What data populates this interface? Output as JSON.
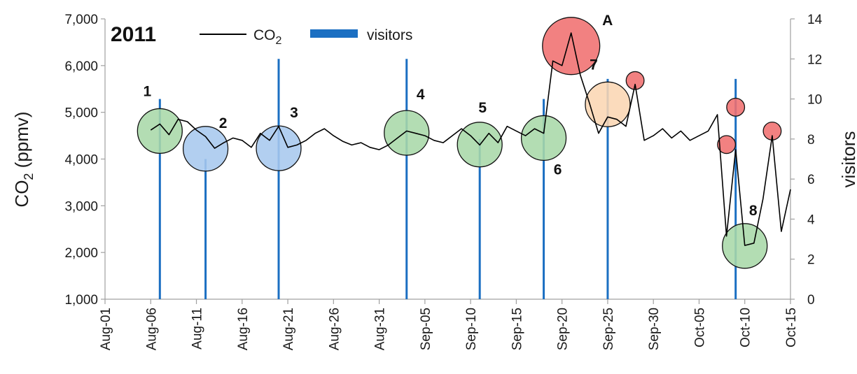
{
  "chart_data": {
    "type": "line",
    "title": "2011",
    "y_left": {
      "label_main": "CO",
      "label_sub": "2",
      "label_unit": " (ppmv)",
      "range": [
        1000,
        7000
      ],
      "ticks": [
        1000,
        2000,
        3000,
        4000,
        5000,
        6000,
        7000
      ],
      "tick_labels": [
        "1,000",
        "2,000",
        "3,000",
        "4,000",
        "5,000",
        "6,000",
        "7,000"
      ]
    },
    "y_right": {
      "label": "visitors",
      "range": [
        0,
        14
      ],
      "ticks": [
        0,
        2,
        4,
        6,
        8,
        10,
        12,
        14
      ],
      "tick_labels": [
        "0",
        "2",
        "4",
        "6",
        "8",
        "10",
        "12",
        "14"
      ]
    },
    "x_axis": {
      "start": "2011-08-01",
      "end": "2011-10-15",
      "tick_dates": [
        "2011-08-01",
        "2011-08-06",
        "2011-08-11",
        "2011-08-16",
        "2011-08-21",
        "2011-08-26",
        "2011-08-31",
        "2011-09-05",
        "2011-09-10",
        "2011-09-15",
        "2011-09-20",
        "2011-09-25",
        "2011-09-30",
        "2011-10-05",
        "2011-10-10",
        "2011-10-15"
      ],
      "tick_labels": [
        "Aug-01",
        "Aug-06",
        "Aug-11",
        "Aug-16",
        "Aug-21",
        "Aug-26",
        "Aug-31",
        "Sep-05",
        "Sep-10",
        "Sep-15",
        "Sep-20",
        "Sep-25",
        "Sep-30",
        "Oct-05",
        "Oct-10",
        "Oct-15"
      ]
    },
    "legend": {
      "placement": "top",
      "co2_main": "CO",
      "co2_sub": "2",
      "visitors": "visitors"
    },
    "series": [
      {
        "name": "CO2",
        "axis": "left",
        "color": "#000000",
        "points": [
          [
            "2011-08-06",
            4620
          ],
          [
            "2011-08-07",
            4750
          ],
          [
            "2011-08-08",
            4520
          ],
          [
            "2011-08-09",
            4850
          ],
          [
            "2011-08-10",
            4800
          ],
          [
            "2011-08-11",
            4620
          ],
          [
            "2011-08-12",
            4480
          ],
          [
            "2011-08-13",
            4230
          ],
          [
            "2011-08-14",
            4350
          ],
          [
            "2011-08-15",
            4450
          ],
          [
            "2011-08-16",
            4400
          ],
          [
            "2011-08-17",
            4250
          ],
          [
            "2011-08-18",
            4550
          ],
          [
            "2011-08-19",
            4400
          ],
          [
            "2011-08-20",
            4700
          ],
          [
            "2011-08-21",
            4250
          ],
          [
            "2011-08-22",
            4300
          ],
          [
            "2011-08-23",
            4400
          ],
          [
            "2011-08-24",
            4550
          ],
          [
            "2011-08-25",
            4650
          ],
          [
            "2011-08-26",
            4500
          ],
          [
            "2011-08-27",
            4380
          ],
          [
            "2011-08-28",
            4300
          ],
          [
            "2011-08-29",
            4350
          ],
          [
            "2011-08-30",
            4250
          ],
          [
            "2011-08-31",
            4200
          ],
          [
            "2011-09-01",
            4300
          ],
          [
            "2011-09-02",
            4450
          ],
          [
            "2011-09-03",
            4600
          ],
          [
            "2011-09-04",
            4550
          ],
          [
            "2011-09-05",
            4500
          ],
          [
            "2011-09-06",
            4400
          ],
          [
            "2011-09-07",
            4350
          ],
          [
            "2011-09-08",
            4500
          ],
          [
            "2011-09-09",
            4650
          ],
          [
            "2011-09-10",
            4500
          ],
          [
            "2011-09-11",
            4300
          ],
          [
            "2011-09-12",
            4550
          ],
          [
            "2011-09-13",
            4350
          ],
          [
            "2011-09-14",
            4700
          ],
          [
            "2011-09-15",
            4600
          ],
          [
            "2011-09-16",
            4500
          ],
          [
            "2011-09-17",
            4650
          ],
          [
            "2011-09-18",
            4550
          ],
          [
            "2011-09-19",
            6100
          ],
          [
            "2011-09-20",
            6000
          ],
          [
            "2011-09-21",
            6700
          ],
          [
            "2011-09-22",
            5800
          ],
          [
            "2011-09-23",
            5200
          ],
          [
            "2011-09-24",
            4550
          ],
          [
            "2011-09-25",
            4900
          ],
          [
            "2011-09-26",
            4850
          ],
          [
            "2011-09-27",
            4700
          ],
          [
            "2011-09-28",
            5600
          ],
          [
            "2011-09-29",
            4400
          ],
          [
            "2011-09-30",
            4500
          ],
          [
            "2011-10-01",
            4650
          ],
          [
            "2011-10-02",
            4450
          ],
          [
            "2011-10-03",
            4600
          ],
          [
            "2011-10-04",
            4400
          ],
          [
            "2011-10-05",
            4500
          ],
          [
            "2011-10-06",
            4600
          ],
          [
            "2011-10-07",
            4950
          ],
          [
            "2011-10-08",
            2350
          ],
          [
            "2011-10-09",
            4200
          ],
          [
            "2011-10-10",
            2150
          ],
          [
            "2011-10-11",
            2200
          ],
          [
            "2011-10-12",
            3150
          ],
          [
            "2011-10-13",
            4500
          ],
          [
            "2011-10-14",
            2450
          ],
          [
            "2011-10-15",
            3350
          ]
        ]
      },
      {
        "name": "visitors",
        "axis": "right",
        "type": "bar",
        "color": "#1b6fc2",
        "points": [
          [
            "2011-08-07",
            10
          ],
          [
            "2011-08-12",
            7
          ],
          [
            "2011-08-20",
            12
          ],
          [
            "2011-09-03",
            12
          ],
          [
            "2011-09-11",
            8
          ],
          [
            "2011-09-18",
            10
          ],
          [
            "2011-09-25",
            11
          ],
          [
            "2011-10-09",
            11
          ]
        ]
      }
    ],
    "annotations": [
      {
        "label": "1",
        "date": "2011-08-07",
        "co2": 4600,
        "r": 1.0,
        "fill": "#a8d8a8"
      },
      {
        "label": "2",
        "date": "2011-08-12",
        "co2": 4220,
        "r": 1.0,
        "fill": "#a7c8ee"
      },
      {
        "label": "3",
        "date": "2011-08-20",
        "co2": 4230,
        "r": 1.0,
        "fill": "#a7c8ee"
      },
      {
        "label": "4",
        "date": "2011-09-03",
        "co2": 4560,
        "r": 1.0,
        "fill": "#a8d8a8"
      },
      {
        "label": "5",
        "date": "2011-09-11",
        "co2": 4310,
        "r": 1.0,
        "fill": "#a8d8a8"
      },
      {
        "label": "6",
        "date": "2011-09-18",
        "co2": 4450,
        "r": 1.0,
        "fill": "#a8d8a8"
      },
      {
        "label": "7",
        "date": "2011-09-25",
        "co2": 5170,
        "r": 1.0,
        "fill": "#fbd6b3"
      },
      {
        "label": "A",
        "date": "2011-09-21",
        "co2": 6420,
        "r": 1.28,
        "fill": "#f07070"
      },
      {
        "label": "",
        "date": "2011-09-28",
        "co2": 5680,
        "r": 0.4,
        "fill": "#f07070"
      },
      {
        "label": "",
        "date": "2011-10-09",
        "co2": 5110,
        "r": 0.4,
        "fill": "#f07070"
      },
      {
        "label": "",
        "date": "2011-10-08",
        "co2": 4310,
        "r": 0.4,
        "fill": "#f07070"
      },
      {
        "label": "",
        "date": "2011-10-13",
        "co2": 4600,
        "r": 0.4,
        "fill": "#f07070"
      },
      {
        "label": "8",
        "date": "2011-10-10",
        "co2": 2140,
        "r": 1.0,
        "fill": "#a8d8a8"
      }
    ]
  }
}
